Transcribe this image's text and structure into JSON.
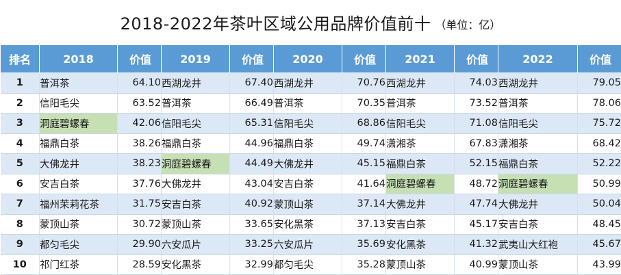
{
  "title": "2018-2022年茶叶区域公用品牌价值前十",
  "unit": "（单位：亿）",
  "header": {
    "rank": "排名",
    "value": "价值",
    "years": [
      "2018",
      "2019",
      "2020",
      "2021",
      "2022"
    ]
  },
  "colors": {
    "header_bg": "#5b9bd5",
    "row_alt_bg": "#dde8f6",
    "highlight_bg": "#c6e0b4"
  },
  "highlight_brand": "洞庭碧螺春",
  "chart_data": {
    "type": "table",
    "title": "2018-2022年茶叶区域公用品牌价值前十",
    "unit": "（单位：亿）",
    "columns": [
      "排名",
      "2018",
      "价值",
      "2019",
      "价值",
      "2020",
      "价值",
      "2021",
      "价值",
      "2022",
      "价值"
    ],
    "rows": [
      [
        "1",
        "普洱茶",
        "64.10",
        "西湖龙井",
        "67.40",
        "西湖龙井",
        "70.76",
        "西湖龙井",
        "74.03",
        "西湖龙井",
        "79.05"
      ],
      [
        "2",
        "信阳毛尖",
        "63.52",
        "普洱茶",
        "66.49",
        "普洱茶",
        "70.35",
        "普洱茶",
        "73.52",
        "普洱茶",
        "78.06"
      ],
      [
        "3",
        "洞庭碧螺春",
        "42.06",
        "信阳毛尖",
        "65.31",
        "信阳毛尖",
        "68.86",
        "信阳毛尖",
        "71.08",
        "信阳毛尖",
        "75.72"
      ],
      [
        "4",
        "福鼎白茶",
        "38.26",
        "福鼎白茶",
        "44.96",
        "福鼎白茶",
        "49.74",
        "潇湘茶",
        "67.83",
        "潇湘茶",
        "68.42"
      ],
      [
        "5",
        "大佛龙井",
        "38.23",
        "洞庭碧螺春",
        "44.49",
        "大佛龙井",
        "45.15",
        "福鼎白茶",
        "52.15",
        "福鼎白茶",
        "52.22"
      ],
      [
        "6",
        "安吉白茶",
        "37.76",
        "大佛龙井",
        "43.04",
        "安吉白茶",
        "41.64",
        "洞庭碧螺春",
        "48.72",
        "洞庭碧螺春",
        "50.99"
      ],
      [
        "7",
        "福州茉莉花茶",
        "31.75",
        "安吉白茶",
        "40.92",
        "蒙顶山茶",
        "37.14",
        "大佛龙井",
        "47.74",
        "大佛龙井",
        "50.04"
      ],
      [
        "8",
        "蒙顶山茶",
        "30.72",
        "蒙顶山茶",
        "33.65",
        "安化黑茶",
        "37.13",
        "安吉白茶",
        "45.17",
        "安吉白茶",
        "48.45"
      ],
      [
        "9",
        "都匀毛尖",
        "29.90",
        "六安瓜片",
        "33.25",
        "六安瓜片",
        "35.69",
        "安化黑茶",
        "41.32",
        "武夷山大红袍",
        "45.67"
      ],
      [
        "10",
        "祁门红茶",
        "28.59",
        "安化黑茶",
        "32.99",
        "都匀毛尖",
        "35.28",
        "蒙顶山茶",
        "40.99",
        "蒙顶山茶",
        "43.99"
      ]
    ]
  }
}
